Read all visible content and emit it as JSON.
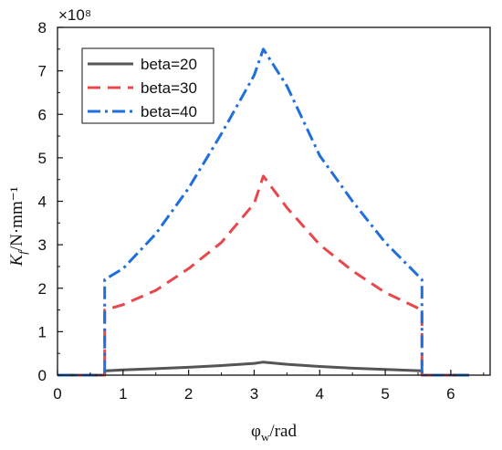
{
  "chart_data": {
    "type": "line",
    "multiplier_label": "×10⁸",
    "xlabel_main": "φ",
    "xlabel_sub": "w",
    "xlabel_unit": "/rad",
    "ylabel_main": "K",
    "ylabel_sub": "f",
    "ylabel_unit": "/N·mm⁻¹",
    "xlim": [
      0,
      6.6
    ],
    "ylim": [
      0,
      8
    ],
    "x_ticks": [
      0,
      1,
      2,
      3,
      4,
      5,
      6
    ],
    "y_ticks": [
      0,
      1,
      2,
      3,
      4,
      5,
      6,
      7,
      8
    ],
    "legend_position": "top-left",
    "grid": false,
    "series": [
      {
        "name": "beta=20",
        "color": "#555555",
        "style": "solid",
        "x": [
          0,
          0.72,
          0.72,
          1.0,
          1.5,
          2.0,
          2.5,
          3.0,
          3.14,
          3.5,
          4.0,
          4.5,
          5.0,
          5.56,
          5.56,
          6.28
        ],
        "y": [
          0,
          0,
          0.1,
          0.12,
          0.15,
          0.18,
          0.22,
          0.27,
          0.3,
          0.25,
          0.2,
          0.16,
          0.13,
          0.1,
          0,
          0
        ]
      },
      {
        "name": "beta=30",
        "color": "#e8474c",
        "style": "dashed",
        "x": [
          0,
          0.72,
          0.72,
          1.0,
          1.5,
          2.0,
          2.5,
          3.0,
          3.14,
          3.5,
          4.0,
          4.5,
          5.0,
          5.56,
          5.56,
          6.28
        ],
        "y": [
          0,
          0,
          1.5,
          1.62,
          1.95,
          2.45,
          3.05,
          3.95,
          4.58,
          3.85,
          3.0,
          2.4,
          1.9,
          1.5,
          0,
          0
        ]
      },
      {
        "name": "beta=40",
        "color": "#1f6fdc",
        "style": "dashdot",
        "x": [
          0,
          0.72,
          0.72,
          1.0,
          1.5,
          2.0,
          2.5,
          3.0,
          3.14,
          3.5,
          4.0,
          4.5,
          5.0,
          5.56,
          5.56,
          6.28
        ],
        "y": [
          0,
          0,
          2.2,
          2.45,
          3.25,
          4.3,
          5.55,
          6.9,
          7.5,
          6.65,
          5.05,
          4.0,
          3.05,
          2.2,
          0,
          0
        ]
      }
    ]
  }
}
